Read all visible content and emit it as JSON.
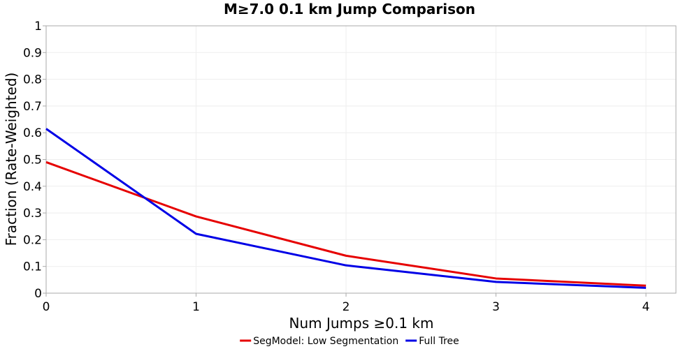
{
  "chart_data": {
    "type": "line",
    "title": "M≥7.0 0.1 km Jump Comparison",
    "xlabel": "Num Jumps ≥0.1 km",
    "ylabel": "Fraction (Rate-Weighted)",
    "x": [
      0,
      1,
      2,
      3,
      4
    ],
    "xlim": [
      0,
      4.2
    ],
    "ylim": [
      0,
      1
    ],
    "x_ticks": [
      "0",
      "1",
      "2",
      "3",
      "4"
    ],
    "y_ticks": [
      "0",
      "0.1",
      "0.2",
      "0.3",
      "0.4",
      "0.5",
      "0.6",
      "0.7",
      "0.8",
      "0.9",
      "1"
    ],
    "grid": true,
    "legend_position": "bottom-center",
    "series": [
      {
        "name": "SegModel: Low Segmentation",
        "color": "#e60000",
        "values": [
          0.49,
          0.287,
          0.14,
          0.055,
          0.028
        ]
      },
      {
        "name": "Full Tree",
        "color": "#0000e6",
        "values": [
          0.615,
          0.222,
          0.104,
          0.042,
          0.02
        ]
      }
    ]
  }
}
